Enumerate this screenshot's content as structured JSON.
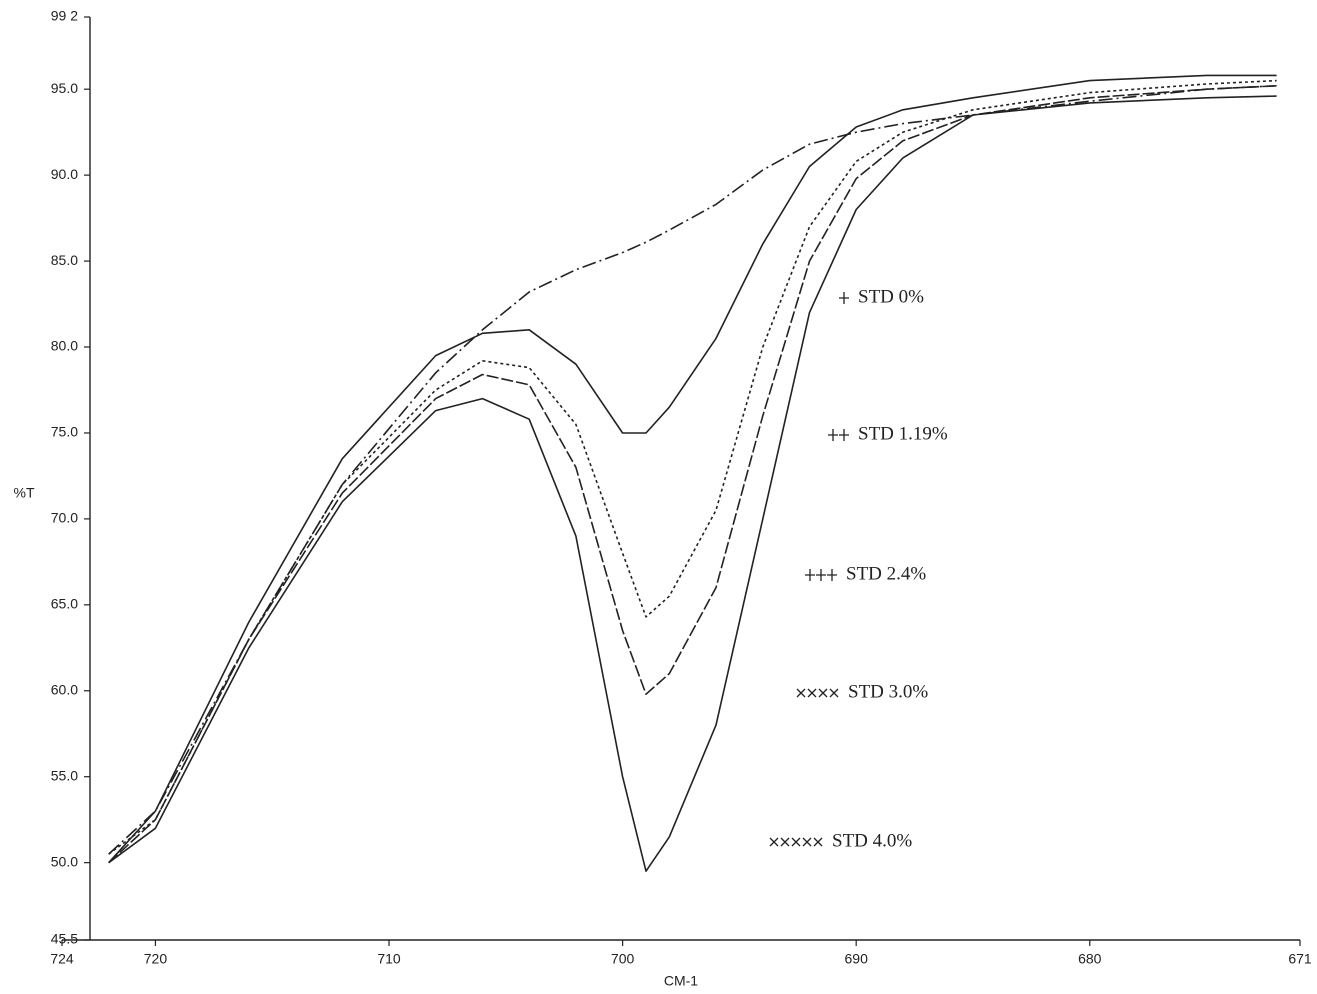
{
  "chart_data": {
    "type": "line",
    "x_label": "CM-1",
    "y_label": "%T",
    "xlim": [
      724,
      671
    ],
    "ylim": [
      45.5,
      99.2
    ],
    "xticks": [
      724,
      720,
      710,
      700,
      690,
      680,
      671
    ],
    "yticks": [
      45.5,
      {
        "value": 50,
        "label": "50.0"
      },
      {
        "value": 55,
        "label": "55.0"
      },
      {
        "value": 60,
        "label": "60.0"
      },
      {
        "value": 65,
        "label": "65.0"
      },
      {
        "value": 70,
        "label": "70.0"
      },
      {
        "value": 75,
        "label": "75.0"
      },
      {
        "value": 80,
        "label": "80.0"
      },
      {
        "value": 85,
        "label": "85.0"
      },
      {
        "value": 90,
        "label": "90.0"
      },
      {
        "value": 95,
        "label": "95.0"
      },
      {
        "value": 99.2,
        "label": "99 2"
      }
    ],
    "x": [
      722,
      720,
      716,
      712,
      708,
      706,
      704,
      702,
      700,
      699,
      698,
      696,
      694,
      692,
      690,
      688,
      685,
      680,
      675,
      672
    ],
    "series": [
      {
        "name": "STD 0%",
        "color": "#222222",
        "dash": "14 4 2 4",
        "values": [
          50.5,
          53,
          63,
          72,
          78.5,
          81,
          83.2,
          84.5,
          85.5,
          86.1,
          86.8,
          88.3,
          90.3,
          91.8,
          92.5,
          93.0,
          93.5,
          94.3,
          95.0,
          95.2
        ]
      },
      {
        "name": "STD 1.19%",
        "color": "#222222",
        "dash": "none",
        "values": [
          50,
          53,
          64,
          73.5,
          79.5,
          80.8,
          81,
          79,
          75,
          75,
          76.5,
          80.5,
          86,
          90.5,
          92.8,
          93.8,
          94.5,
          95.5,
          95.8,
          95.8
        ]
      },
      {
        "name": "STD 2.4%",
        "color": "#222222",
        "dash": "3 3",
        "values": [
          50.5,
          52.5,
          63,
          72,
          77.5,
          79.2,
          78.8,
          75.5,
          68,
          64.3,
          65.5,
          70.5,
          80,
          87,
          90.8,
          92.5,
          93.8,
          94.8,
          95.3,
          95.5
        ]
      },
      {
        "name": "STD 3.0%",
        "color": "#222222",
        "dash": "12 3",
        "values": [
          50,
          52.5,
          63,
          71.5,
          77,
          78.4,
          77.8,
          73,
          63.5,
          59.8,
          61,
          66,
          76,
          85,
          89.8,
          92,
          93.5,
          94.5,
          95.0,
          95.2
        ]
      },
      {
        "name": "STD 4.0%",
        "color": "#222222",
        "dash": "none",
        "values": [
          50,
          52,
          62.5,
          71,
          76.3,
          77,
          75.8,
          69,
          55,
          49.5,
          51.5,
          58,
          70,
          82,
          88,
          91,
          93.5,
          94.2,
          94.5,
          94.6
        ]
      }
    ]
  }
}
